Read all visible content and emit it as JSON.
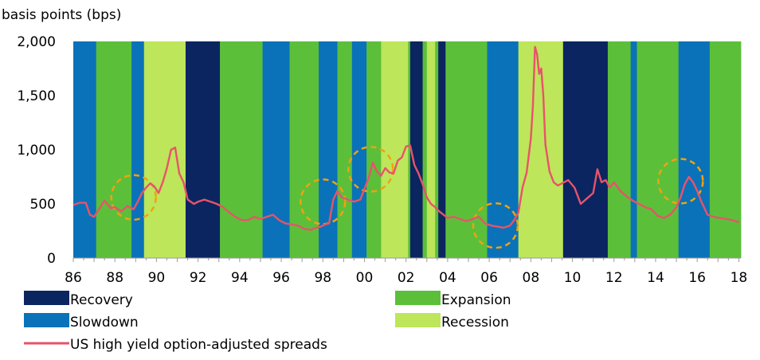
{
  "chart_data": {
    "type": "line",
    "ylabel": "basis points (bps)",
    "ylim": [
      0,
      2000
    ],
    "xlim": [
      1986,
      2018.1
    ],
    "yticks": [
      {
        "value": 0,
        "label": "0"
      },
      {
        "value": 500,
        "label": "500"
      },
      {
        "value": 1000,
        "label": "1,000"
      },
      {
        "value": 1500,
        "label": "1,500"
      },
      {
        "value": 2000,
        "label": "2,000"
      }
    ],
    "xticks": [
      {
        "value": 1986,
        "label": "86"
      },
      {
        "value": 1988,
        "label": "88"
      },
      {
        "value": 1990,
        "label": "90"
      },
      {
        "value": 1992,
        "label": "92"
      },
      {
        "value": 1994,
        "label": "94"
      },
      {
        "value": 1996,
        "label": "96"
      },
      {
        "value": 1998,
        "label": "98"
      },
      {
        "value": 2000,
        "label": "00"
      },
      {
        "value": 2002,
        "label": "02"
      },
      {
        "value": 2004,
        "label": "04"
      },
      {
        "value": 2006,
        "label": "06"
      },
      {
        "value": 2008,
        "label": "08"
      },
      {
        "value": 2010,
        "label": "10"
      },
      {
        "value": 2012,
        "label": "12"
      },
      {
        "value": 2014,
        "label": "14"
      },
      {
        "value": 2016,
        "label": "16"
      },
      {
        "value": 2018,
        "label": "18"
      }
    ],
    "phases": {
      "Recovery": "#0b2560",
      "Expansion": "#5cbf3a",
      "Slowdown": "#0a72b8",
      "Recession": "#bde65a"
    },
    "phase_periods": [
      {
        "phase": "Slowdown",
        "start": 1986.0,
        "end": 1987.1
      },
      {
        "phase": "Expansion",
        "start": 1987.1,
        "end": 1988.8
      },
      {
        "phase": "Slowdown",
        "start": 1988.8,
        "end": 1989.4
      },
      {
        "phase": "Recession",
        "start": 1989.4,
        "end": 1991.4
      },
      {
        "phase": "Recovery",
        "start": 1991.4,
        "end": 1993.05
      },
      {
        "phase": "Expansion",
        "start": 1993.05,
        "end": 1995.1
      },
      {
        "phase": "Slowdown",
        "start": 1995.1,
        "end": 1996.4
      },
      {
        "phase": "Expansion",
        "start": 1996.4,
        "end": 1997.8
      },
      {
        "phase": "Slowdown",
        "start": 1997.8,
        "end": 1998.7
      },
      {
        "phase": "Expansion",
        "start": 1998.7,
        "end": 1999.4
      },
      {
        "phase": "Slowdown",
        "start": 1999.4,
        "end": 2000.1
      },
      {
        "phase": "Expansion",
        "start": 2000.1,
        "end": 2000.8
      },
      {
        "phase": "Recession",
        "start": 2000.8,
        "end": 2002.1
      },
      {
        "phase": "Expansion",
        "start": 2002.1,
        "end": 2002.2
      },
      {
        "phase": "Recovery",
        "start": 2002.2,
        "end": 2002.8
      },
      {
        "phase": "Expansion",
        "start": 2002.8,
        "end": 2003.0
      },
      {
        "phase": "Recession",
        "start": 2003.0,
        "end": 2003.4
      },
      {
        "phase": "Expansion",
        "start": 2003.4,
        "end": 2003.55
      },
      {
        "phase": "Recovery",
        "start": 2003.55,
        "end": 2003.9
      },
      {
        "phase": "Expansion",
        "start": 2003.9,
        "end": 2005.9
      },
      {
        "phase": "Slowdown",
        "start": 2005.9,
        "end": 2007.4
      },
      {
        "phase": "Recession",
        "start": 2007.4,
        "end": 2009.55
      },
      {
        "phase": "Recovery",
        "start": 2009.55,
        "end": 2011.7
      },
      {
        "phase": "Expansion",
        "start": 2011.7,
        "end": 2012.8
      },
      {
        "phase": "Slowdown",
        "start": 2012.8,
        "end": 2013.1
      },
      {
        "phase": "Expansion",
        "start": 2013.1,
        "end": 2015.1
      },
      {
        "phase": "Slowdown",
        "start": 2015.1,
        "end": 2016.6
      },
      {
        "phase": "Expansion",
        "start": 2016.6,
        "end": 2018.1
      }
    ],
    "series": [
      {
        "name": "US high yield option-adjusted spreads",
        "color": "#e8536a",
        "x": [
          1986.0,
          1986.3,
          1986.6,
          1986.8,
          1987.0,
          1987.2,
          1987.5,
          1987.8,
          1988.0,
          1988.3,
          1988.6,
          1988.9,
          1989.1,
          1989.3,
          1989.5,
          1989.7,
          1989.9,
          1990.1,
          1990.3,
          1990.5,
          1990.7,
          1990.9,
          1991.1,
          1991.3,
          1991.5,
          1991.8,
          1992.0,
          1992.3,
          1992.6,
          1992.9,
          1993.2,
          1993.5,
          1993.8,
          1994.1,
          1994.4,
          1994.7,
          1995.0,
          1995.3,
          1995.6,
          1995.9,
          1996.2,
          1996.5,
          1996.8,
          1997.1,
          1997.4,
          1997.7,
          1997.9,
          1998.1,
          1998.3,
          1998.5,
          1998.7,
          1998.9,
          1999.2,
          1999.5,
          1999.8,
          2000.0,
          2000.2,
          2000.4,
          2000.6,
          2000.8,
          2001.0,
          2001.2,
          2001.4,
          2001.6,
          2001.8,
          2002.0,
          2002.2,
          2002.4,
          2002.6,
          2002.8,
          2003.0,
          2003.2,
          2003.4,
          2003.6,
          2003.8,
          2004.0,
          2004.3,
          2004.6,
          2004.9,
          2005.2,
          2005.5,
          2005.8,
          2006.1,
          2006.4,
          2006.7,
          2007.0,
          2007.2,
          2007.4,
          2007.6,
          2007.8,
          2008.0,
          2008.1,
          2008.2,
          2008.3,
          2008.4,
          2008.5,
          2008.6,
          2008.7,
          2008.9,
          2009.1,
          2009.3,
          2009.5,
          2009.8,
          2010.1,
          2010.4,
          2010.7,
          2011.0,
          2011.2,
          2011.4,
          2011.6,
          2011.8,
          2012.0,
          2012.3,
          2012.6,
          2012.9,
          2013.2,
          2013.5,
          2013.8,
          2014.1,
          2014.4,
          2014.7,
          2015.0,
          2015.2,
          2015.4,
          2015.6,
          2015.8,
          2016.0,
          2016.2,
          2016.5,
          2016.8,
          2017.1,
          2017.4,
          2017.7,
          2018.0
        ],
        "y": [
          490,
          510,
          510,
          400,
          380,
          440,
          530,
          460,
          470,
          430,
          480,
          450,
          520,
          600,
          650,
          690,
          660,
          600,
          700,
          830,
          1000,
          1020,
          780,
          700,
          540,
          500,
          520,
          540,
          520,
          500,
          470,
          420,
          380,
          350,
          350,
          380,
          360,
          380,
          400,
          350,
          320,
          310,
          300,
          270,
          260,
          280,
          290,
          310,
          320,
          540,
          620,
          560,
          540,
          520,
          540,
          640,
          740,
          880,
          800,
          760,
          830,
          790,
          780,
          900,
          930,
          1030,
          1040,
          860,
          780,
          680,
          560,
          500,
          470,
          430,
          400,
          370,
          380,
          360,
          340,
          360,
          380,
          320,
          300,
          290,
          280,
          300,
          350,
          420,
          650,
          790,
          1100,
          1400,
          1950,
          1880,
          1700,
          1750,
          1500,
          1050,
          800,
          700,
          670,
          690,
          720,
          650,
          500,
          550,
          600,
          820,
          700,
          720,
          650,
          700,
          620,
          570,
          530,
          500,
          470,
          450,
          390,
          370,
          400,
          470,
          560,
          680,
          750,
          700,
          620,
          520,
          400,
          380,
          370,
          360,
          350,
          330
        ]
      }
    ],
    "highlight_circles": [
      {
        "x": 1988.9,
        "y": 560
      },
      {
        "x": 1998.0,
        "y": 520
      },
      {
        "x": 2000.3,
        "y": 820
      },
      {
        "x": 2006.3,
        "y": 300
      },
      {
        "x": 2015.2,
        "y": 710
      }
    ],
    "highlight_color": "#f0a20f",
    "legend": [
      {
        "label": "Recovery",
        "kind": "box",
        "color": "#0b2560",
        "col": 0,
        "row": 0
      },
      {
        "label": "Expansion",
        "kind": "box",
        "color": "#5cbf3a",
        "col": 1,
        "row": 0
      },
      {
        "label": "Slowdown",
        "kind": "box",
        "color": "#0a72b8",
        "col": 0,
        "row": 1
      },
      {
        "label": "Recession",
        "kind": "box",
        "color": "#bde65a",
        "col": 1,
        "row": 1
      },
      {
        "label": "US high yield option-adjusted spreads",
        "kind": "line",
        "color": "#e8536a",
        "col": 0,
        "row": 2
      }
    ]
  }
}
